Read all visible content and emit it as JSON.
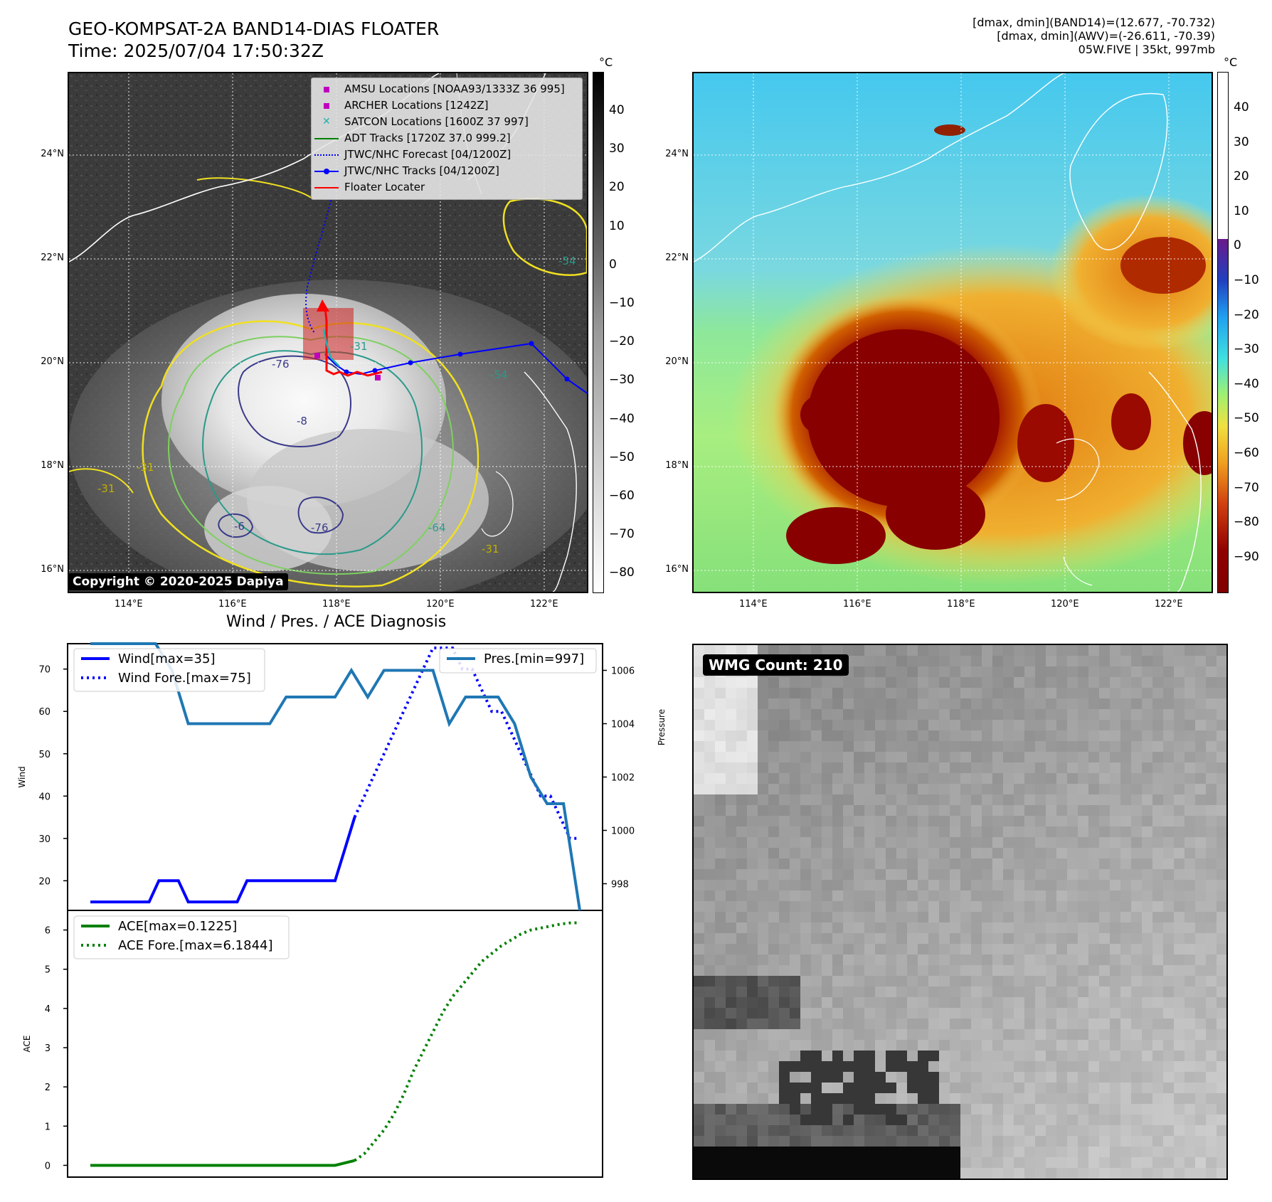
{
  "header": {
    "title": "GEO-KOMPSAT-2A BAND14-DIAS FLOATER",
    "time": "Time: 2025/07/04 17:50:32Z",
    "info_lines": [
      "[dmax, dmin](BAND14)=(12.677, -70.732)",
      "[dmax, dmin](AWV)=(-26.611, -70.39)",
      "05W.FIVE | 35kt, 997mb"
    ]
  },
  "ir_map": {
    "lat_labels": [
      "24°N",
      "22°N",
      "20°N",
      "18°N",
      "16°N"
    ],
    "lon_labels": [
      "114°E",
      "116°E",
      "118°E",
      "120°E",
      "122°E"
    ],
    "copyright": "Copyright © 2020-2025 Dapiya",
    "colorbar_unit": "°C",
    "colorbar_ticks": [
      "40",
      "30",
      "20",
      "10",
      "0",
      "−10",
      "−20",
      "−30",
      "−40",
      "−50",
      "−60",
      "−70",
      "−80"
    ],
    "legend": [
      {
        "label": "AMSU Locations [NOAA93/1333Z 36 995]",
        "color": "#c000c0",
        "marker": "square"
      },
      {
        "label": "ARCHER Locations [1242Z]",
        "color": "#c000c0",
        "marker": "square"
      },
      {
        "label": "SATCON Locations [1600Z 37 997]",
        "color": "#20b0b0",
        "marker": "x"
      },
      {
        "label": "ADT Tracks [1720Z 37.0 999.2]",
        "color": "#008000",
        "marker": "line"
      },
      {
        "label": "JTWC/NHC Forecast [04/1200Z]",
        "color": "#0000ff",
        "marker": "dotted"
      },
      {
        "label": "JTWC/NHC Tracks [04/1200Z]",
        "color": "#0000ff",
        "marker": "line-dot"
      },
      {
        "label": "Floater Locater",
        "color": "#ff0000",
        "marker": "line"
      }
    ],
    "contour_labels": [
      "-76",
      "-76",
      "-8",
      "-31",
      "-54",
      "-54",
      "-31",
      "-31",
      "-6",
      "-64",
      "-31"
    ]
  },
  "awv_map": {
    "lat_labels": [
      "24°N",
      "22°N",
      "20°N",
      "18°N",
      "16°N"
    ],
    "lon_labels": [
      "114°E",
      "116°E",
      "118°E",
      "120°E",
      "122°E"
    ],
    "colorbar_unit": "°C",
    "colorbar_ticks": [
      "40",
      "30",
      "20",
      "10",
      "0",
      "−10",
      "−20",
      "−30",
      "−40",
      "−50",
      "−60",
      "−70",
      "−80",
      "−90"
    ]
  },
  "diagnosis": {
    "title": "Wind / Pres. / ACE Diagnosis",
    "wind_ylabel": "Wind",
    "pressure_ylabel": "Pressure",
    "ace_ylabel": "ACE",
    "legend_wind": "Wind[max=35]",
    "legend_wind_fore": "Wind Fore.[max=75]",
    "legend_pres": "Pres.[min=997]",
    "legend_ace": "ACE[max=0.1225]",
    "legend_ace_fore": "ACE Fore.[max=6.1844]"
  },
  "wmg": {
    "badge": "WMG Count: 210"
  },
  "chart_data": [
    {
      "type": "line",
      "title": "Wind / Pres. / ACE Diagnosis",
      "ylabel": "Wind",
      "ylim": [
        13,
        76
      ],
      "yticks": [
        20,
        30,
        40,
        50,
        60,
        70
      ],
      "x": [
        0,
        1,
        2,
        3,
        4,
        5,
        6,
        7,
        8,
        9,
        10,
        11,
        12,
        13,
        14,
        15,
        16,
        17,
        18,
        19,
        20,
        21,
        22,
        23,
        24,
        25,
        26,
        27,
        28,
        29,
        30,
        31,
        32,
        33,
        34,
        35,
        36,
        37,
        38,
        39,
        40,
        41,
        42,
        43,
        44,
        45,
        46,
        47,
        48,
        49,
        50
      ],
      "series": [
        {
          "name": "Wind[max=35]",
          "color": "#0000ff",
          "style": "solid",
          "values": [
            15,
            15,
            15,
            15,
            15,
            15,
            15,
            20,
            20,
            20,
            15,
            15,
            15,
            15,
            15,
            15,
            20,
            20,
            20,
            20,
            20,
            20,
            20,
            20,
            20,
            20,
            27.5,
            35,
            null,
            null,
            null,
            null,
            null,
            null,
            null,
            null,
            null,
            null,
            null,
            null,
            null,
            null,
            null,
            null,
            null,
            null,
            null,
            null,
            null,
            null,
            null
          ]
        },
        {
          "name": "Wind Fore.[max=75]",
          "color": "#0000ff",
          "style": "dotted",
          "values": [
            null,
            null,
            null,
            null,
            null,
            null,
            null,
            null,
            null,
            null,
            null,
            null,
            null,
            null,
            null,
            null,
            null,
            null,
            null,
            null,
            null,
            null,
            null,
            null,
            null,
            null,
            null,
            35,
            40,
            45,
            50,
            55,
            60,
            65,
            70,
            75,
            75,
            75,
            70,
            70,
            65,
            60,
            60,
            55,
            50,
            45,
            40,
            40,
            35,
            30,
            30
          ]
        }
      ]
    },
    {
      "type": "line",
      "ylabel": "Pressure",
      "ylim": [
        997,
        1007
      ],
      "yticks": [
        998,
        1000,
        1002,
        1004,
        1006
      ],
      "x": [
        0,
        1,
        2,
        3,
        4,
        5,
        6,
        7,
        8,
        9,
        10,
        11,
        12,
        13,
        14,
        15,
        16,
        17,
        18,
        19,
        20,
        21,
        22,
        23,
        24,
        25,
        26,
        27,
        28,
        29,
        30
      ],
      "series": [
        {
          "name": "Pres.[min=997]",
          "color": "#1f77b4",
          "style": "solid",
          "values": [
            1007,
            1007,
            1007,
            1007,
            1007,
            1006,
            1004,
            1004,
            1004,
            1004,
            1004,
            1004,
            1005,
            1005,
            1005,
            1005,
            1006,
            1005,
            1006,
            1006,
            1006,
            1006,
            1004,
            1005,
            1005,
            1005,
            1004,
            1002,
            1001,
            1001,
            997
          ]
        }
      ]
    },
    {
      "type": "line",
      "ylabel": "ACE",
      "ylim": [
        -0.3,
        6.5
      ],
      "yticks": [
        0,
        1,
        2,
        3,
        4,
        5,
        6
      ],
      "x": [
        0,
        1,
        2,
        3,
        4,
        5,
        6,
        7,
        8,
        9,
        10,
        11,
        12,
        13,
        14,
        15,
        16,
        17,
        18,
        19,
        20,
        21,
        22,
        23,
        24,
        25,
        26,
        27,
        28,
        29,
        30,
        31,
        32,
        33,
        34,
        35,
        36,
        37,
        38,
        39,
        40,
        41,
        42,
        43,
        44,
        45,
        46,
        47,
        48,
        49,
        50
      ],
      "series": [
        {
          "name": "ACE[max=0.1225]",
          "color": "#008000",
          "style": "solid",
          "values": [
            0,
            0,
            0,
            0,
            0,
            0,
            0,
            0,
            0,
            0,
            0,
            0,
            0,
            0,
            0,
            0,
            0,
            0,
            0,
            0,
            0,
            0,
            0,
            0,
            0,
            0,
            0.06,
            0.1225,
            null,
            null,
            null,
            null,
            null,
            null,
            null,
            null,
            null,
            null,
            null,
            null,
            null,
            null,
            null,
            null,
            null,
            null,
            null,
            null,
            null,
            null,
            null
          ]
        },
        {
          "name": "ACE Fore.[max=6.1844]",
          "color": "#008000",
          "style": "dotted",
          "values": [
            null,
            null,
            null,
            null,
            null,
            null,
            null,
            null,
            null,
            null,
            null,
            null,
            null,
            null,
            null,
            null,
            null,
            null,
            null,
            null,
            null,
            null,
            null,
            null,
            null,
            null,
            null,
            0.1225,
            0.3,
            0.6,
            0.9,
            1.3,
            1.8,
            2.4,
            2.9,
            3.4,
            3.9,
            4.3,
            4.6,
            4.9,
            5.2,
            5.4,
            5.6,
            5.75,
            5.9,
            6.0,
            6.05,
            6.1,
            6.15,
            6.18,
            6.1844
          ]
        }
      ]
    }
  ]
}
